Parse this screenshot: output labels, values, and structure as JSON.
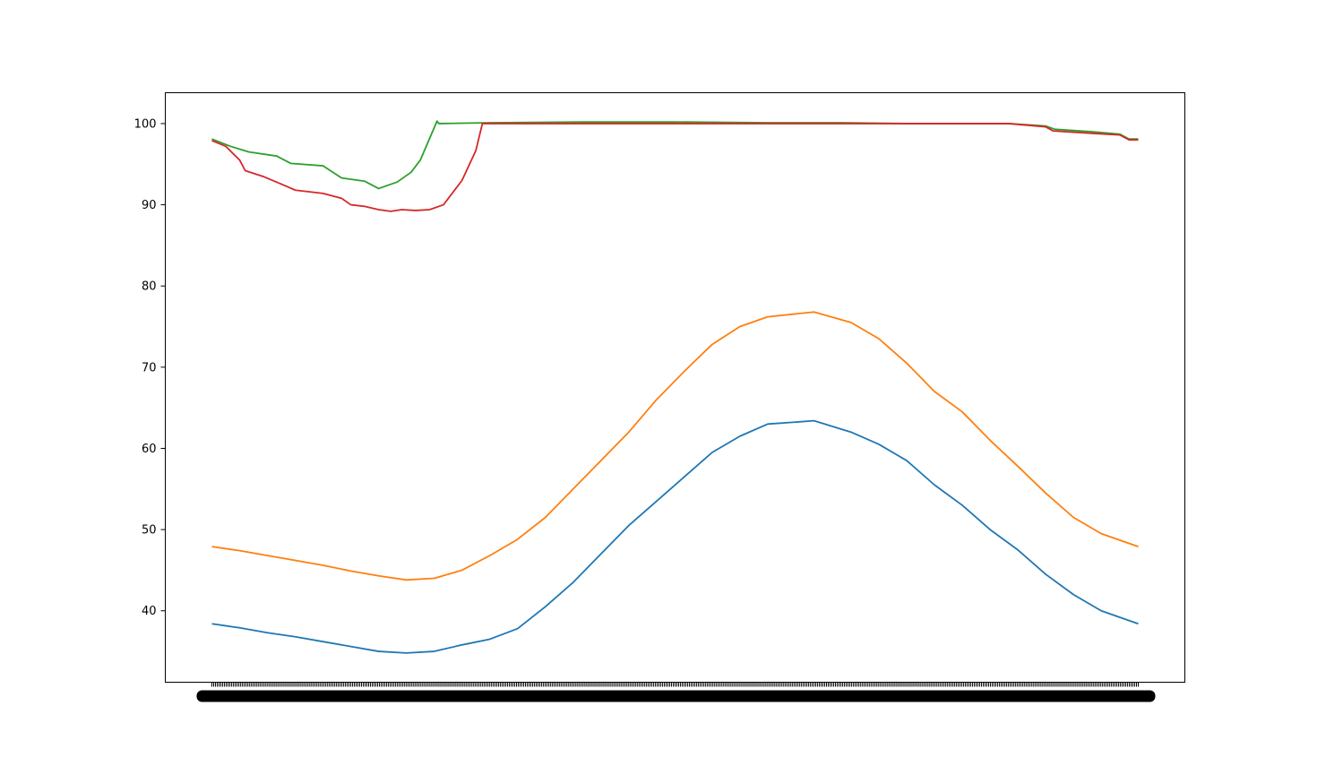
{
  "chart_data": {
    "type": "line",
    "title": "",
    "xlabel": "",
    "ylabel": "",
    "x_range": [
      0,
      100
    ],
    "ylim": [
      31.2,
      103.8
    ],
    "y_ticks": [
      40,
      50,
      60,
      70,
      80,
      90,
      100
    ],
    "y_tick_labels": [
      "40",
      "50",
      "60",
      "70",
      "80",
      "90",
      "100"
    ],
    "x_tick_labels_note": "x tick labels are densely overlapping and illegible",
    "grid": false,
    "legend": "none",
    "series": [
      {
        "color": "#1f77b4",
        "points": [
          [
            0,
            38.4
          ],
          [
            3,
            37.9
          ],
          [
            6,
            37.3
          ],
          [
            9,
            36.8
          ],
          [
            12,
            36.2
          ],
          [
            15,
            35.6
          ],
          [
            18,
            35.0
          ],
          [
            21,
            34.8
          ],
          [
            24,
            35.0
          ],
          [
            27,
            35.8
          ],
          [
            30,
            36.5
          ],
          [
            33,
            37.8
          ],
          [
            36,
            40.5
          ],
          [
            39,
            43.5
          ],
          [
            42,
            47.0
          ],
          [
            45,
            50.5
          ],
          [
            48,
            53.5
          ],
          [
            51,
            56.5
          ],
          [
            54,
            59.5
          ],
          [
            57,
            61.5
          ],
          [
            60,
            63.0
          ],
          [
            65,
            63.4
          ],
          [
            69,
            62.0
          ],
          [
            72,
            60.5
          ],
          [
            75,
            58.5
          ],
          [
            78,
            55.5
          ],
          [
            81,
            53.0
          ],
          [
            84,
            50.0
          ],
          [
            87,
            47.5
          ],
          [
            90,
            44.5
          ],
          [
            93,
            42.0
          ],
          [
            96,
            40.0
          ],
          [
            100,
            38.4
          ]
        ]
      },
      {
        "color": "#ff7f0e",
        "points": [
          [
            0,
            47.9
          ],
          [
            3,
            47.4
          ],
          [
            6,
            46.8
          ],
          [
            9,
            46.2
          ],
          [
            12,
            45.6
          ],
          [
            15,
            44.9
          ],
          [
            18,
            44.3
          ],
          [
            21,
            43.8
          ],
          [
            24,
            44.0
          ],
          [
            27,
            45.0
          ],
          [
            30,
            46.8
          ],
          [
            33,
            48.8
          ],
          [
            36,
            51.5
          ],
          [
            39,
            55.0
          ],
          [
            42,
            58.5
          ],
          [
            45,
            62.0
          ],
          [
            48,
            66.0
          ],
          [
            51,
            69.5
          ],
          [
            54,
            72.8
          ],
          [
            57,
            75.0
          ],
          [
            60,
            76.2
          ],
          [
            65,
            76.8
          ],
          [
            69,
            75.5
          ],
          [
            72,
            73.5
          ],
          [
            75,
            70.5
          ],
          [
            78,
            67.0
          ],
          [
            81,
            64.5
          ],
          [
            84,
            61.0
          ],
          [
            87,
            57.8
          ],
          [
            90,
            54.5
          ],
          [
            93,
            51.5
          ],
          [
            96,
            49.5
          ],
          [
            100,
            47.9
          ]
        ]
      },
      {
        "color": "#2ca02c",
        "points": [
          [
            0,
            98.1
          ],
          [
            2,
            97.2
          ],
          [
            4,
            96.5
          ],
          [
            7,
            96.0
          ],
          [
            8.5,
            95.1
          ],
          [
            12,
            94.8
          ],
          [
            14,
            93.3
          ],
          [
            16.5,
            92.9
          ],
          [
            18,
            92.0
          ],
          [
            20,
            92.8
          ],
          [
            21.5,
            94.0
          ],
          [
            22.5,
            95.5
          ],
          [
            24.3,
            100.3
          ],
          [
            24.5,
            100.0
          ],
          [
            30,
            100.1
          ],
          [
            40,
            100.2
          ],
          [
            50,
            100.2
          ],
          [
            60,
            100.1
          ],
          [
            68,
            100.1
          ],
          [
            75,
            100.0
          ],
          [
            86,
            100.0
          ],
          [
            90,
            99.7
          ],
          [
            91,
            99.3
          ],
          [
            95,
            99.0
          ],
          [
            98,
            98.7
          ],
          [
            99,
            98.1
          ],
          [
            100,
            98.1
          ]
        ]
      },
      {
        "color": "#d62728",
        "points": [
          [
            0,
            97.9
          ],
          [
            1.5,
            97.2
          ],
          [
            3,
            95.5
          ],
          [
            3.6,
            94.2
          ],
          [
            5.5,
            93.5
          ],
          [
            8,
            92.3
          ],
          [
            9,
            91.8
          ],
          [
            12,
            91.4
          ],
          [
            14,
            90.8
          ],
          [
            15,
            90.0
          ],
          [
            16.5,
            89.8
          ],
          [
            18,
            89.4
          ],
          [
            19.3,
            89.2
          ],
          [
            20.5,
            89.4
          ],
          [
            22,
            89.3
          ],
          [
            23.5,
            89.4
          ],
          [
            25,
            90.0
          ],
          [
            27,
            93.0
          ],
          [
            28.5,
            96.7
          ],
          [
            29.2,
            100.0
          ],
          [
            40,
            100.0
          ],
          [
            50,
            100.0
          ],
          [
            60,
            100.0
          ],
          [
            70,
            100.0
          ],
          [
            80,
            100.0
          ],
          [
            86,
            100.0
          ],
          [
            90,
            99.6
          ],
          [
            90.8,
            99.1
          ],
          [
            95,
            98.8
          ],
          [
            98,
            98.6
          ],
          [
            99,
            98.0
          ],
          [
            100,
            98.0
          ]
        ]
      }
    ]
  }
}
